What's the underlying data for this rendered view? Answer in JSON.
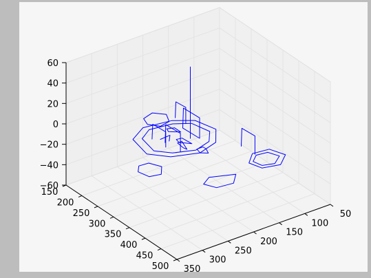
{
  "chart_data": {
    "type": "line",
    "projection": "3d",
    "title": "",
    "xlabel": "",
    "ylabel": "",
    "zlabel": "",
    "grid": true,
    "legend": "none",
    "line_color": "#0000ff",
    "figure_bg": "#bdbdbd",
    "axes_bg": "#f6f6f6",
    "xlim": [
      150,
      500
    ],
    "ylim": [
      50,
      350
    ],
    "zlim": [
      -60,
      60
    ],
    "x_ticks": [
      {
        "value": 150,
        "label": "150"
      },
      {
        "value": 200,
        "label": "200"
      },
      {
        "value": 250,
        "label": "250"
      },
      {
        "value": 300,
        "label": "300"
      },
      {
        "value": 350,
        "label": "350"
      },
      {
        "value": 400,
        "label": "400"
      },
      {
        "value": 450,
        "label": "450"
      },
      {
        "value": 500,
        "label": "500"
      }
    ],
    "y_ticks": [
      {
        "value": 50,
        "label": "50"
      },
      {
        "value": 100,
        "label": "100"
      },
      {
        "value": 150,
        "label": "150"
      },
      {
        "value": 200,
        "label": "200"
      },
      {
        "value": 250,
        "label": "250"
      },
      {
        "value": 300,
        "label": "300"
      },
      {
        "value": 350,
        "label": "350"
      }
    ],
    "z_ticks": [
      {
        "value": -60,
        "label": "−60"
      },
      {
        "value": -40,
        "label": "−40"
      },
      {
        "value": -20,
        "label": "−20"
      },
      {
        "value": 0,
        "label": "0"
      },
      {
        "value": 20,
        "label": "20"
      },
      {
        "value": 40,
        "label": "40"
      },
      {
        "value": 60,
        "label": "60"
      }
    ],
    "series": [
      {
        "points": [
          [
            250,
            160,
            -10
          ],
          [
            300,
            150,
            -10
          ],
          [
            340,
            175,
            -10
          ],
          [
            355,
            215,
            -10
          ],
          [
            335,
            260,
            -10
          ],
          [
            300,
            285,
            -10
          ],
          [
            240,
            275,
            -10
          ],
          [
            215,
            240,
            -10
          ],
          [
            225,
            190,
            -10
          ],
          [
            250,
            160,
            -10
          ]
        ]
      },
      {
        "points": [
          [
            255,
            170,
            -10
          ],
          [
            300,
            162,
            -10
          ],
          [
            330,
            182,
            -10
          ],
          [
            342,
            215,
            -10
          ],
          [
            325,
            250,
            -10
          ],
          [
            298,
            270,
            -10
          ],
          [
            248,
            262,
            -10
          ],
          [
            228,
            236,
            -10
          ],
          [
            236,
            195,
            -10
          ],
          [
            255,
            170,
            -10
          ]
        ]
      },
      {
        "points": [
          [
            420,
            120,
            -10
          ],
          [
            455,
            110,
            -10
          ],
          [
            480,
            135,
            -10
          ],
          [
            470,
            165,
            -10
          ],
          [
            440,
            172,
            -10
          ],
          [
            415,
            150,
            -10
          ],
          [
            420,
            120,
            -10
          ]
        ]
      },
      {
        "points": [
          [
            428,
            128,
            -10
          ],
          [
            452,
            120,
            -10
          ],
          [
            470,
            140,
            -10
          ],
          [
            462,
            160,
            -10
          ],
          [
            440,
            164,
            -10
          ],
          [
            424,
            148,
            -10
          ],
          [
            428,
            128,
            -10
          ]
        ]
      },
      {
        "points": [
          [
            180,
            200,
            -10
          ],
          [
            200,
            185,
            -10
          ],
          [
            225,
            195,
            -10
          ],
          [
            230,
            215,
            -10
          ],
          [
            210,
            228,
            -10
          ],
          [
            188,
            222,
            -10
          ],
          [
            180,
            200,
            -10
          ]
        ]
      },
      {
        "points": [
          [
            330,
            300,
            -10
          ],
          [
            355,
            290,
            -10
          ],
          [
            378,
            305,
            -10
          ],
          [
            372,
            325,
            -10
          ],
          [
            345,
            330,
            -10
          ],
          [
            328,
            318,
            -10
          ],
          [
            330,
            300,
            -10
          ]
        ]
      },
      {
        "points": [
          [
            460,
            210,
            -10
          ],
          [
            485,
            230,
            -10
          ],
          [
            480,
            260,
            -10
          ],
          [
            455,
            270,
            -10
          ],
          [
            440,
            250,
            -10
          ],
          [
            460,
            210,
            -10
          ]
        ]
      },
      {
        "points": [
          [
            260,
            190,
            -10
          ],
          [
            262,
            190,
            10
          ],
          [
            310,
            188,
            10
          ],
          [
            310,
            188,
            -10
          ],
          [
            260,
            190,
            -10
          ]
        ]
      },
      {
        "points": [
          [
            285,
            240,
            -10
          ],
          [
            287,
            240,
            8
          ],
          [
            330,
            238,
            8
          ],
          [
            330,
            238,
            -10
          ]
        ]
      },
      {
        "points": [
          [
            220,
            180,
            -10
          ],
          [
            222,
            180,
            6
          ],
          [
            250,
            178,
            6
          ],
          [
            250,
            178,
            -10
          ]
        ]
      },
      {
        "points": [
          [
            380,
            150,
            -10
          ],
          [
            382,
            150,
            8
          ],
          [
            420,
            148,
            8
          ],
          [
            420,
            148,
            -10
          ]
        ]
      },
      {
        "points": [
          [
            260,
            250,
            -10
          ],
          [
            262,
            250,
            5
          ],
          [
            300,
            248,
            5
          ],
          [
            300,
            248,
            -10
          ]
        ]
      },
      {
        "points": [
          [
            250,
            200,
            -10
          ],
          [
            270,
            200,
            -10
          ],
          [
            255,
            215,
            -10
          ],
          [
            245,
            212,
            -10
          ],
          [
            250,
            200,
            -10
          ]
        ]
      },
      {
        "points": [
          [
            290,
            210,
            -10
          ],
          [
            318,
            208,
            -10
          ],
          [
            300,
            222,
            -10
          ],
          [
            288,
            220,
            -10
          ],
          [
            290,
            210,
            -10
          ]
        ]
      },
      {
        "points": [
          [
            270,
            240,
            -10
          ],
          [
            268,
            220,
            -10
          ],
          [
            285,
            232,
            -10
          ]
        ]
      },
      {
        "points": [
          [
            300,
            200,
            -10
          ],
          [
            300,
            200,
            60
          ]
        ]
      },
      {
        "points": [
          [
            300,
            225,
            -10
          ],
          [
            315,
            226,
            -5
          ],
          [
            330,
            225,
            -10
          ],
          [
            315,
            223,
            -12
          ],
          [
            300,
            225,
            -10
          ]
        ]
      },
      {
        "points": [
          [
            340,
            200,
            -10
          ],
          [
            350,
            200,
            -10
          ],
          [
            365,
            205,
            -10
          ],
          [
            355,
            215,
            -10
          ],
          [
            340,
            212,
            -10
          ],
          [
            340,
            200,
            -10
          ]
        ]
      }
    ]
  }
}
